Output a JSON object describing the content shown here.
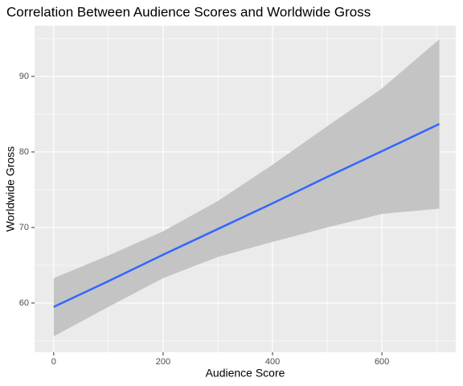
{
  "chart_data": {
    "type": "smooth",
    "title": "Correlation Between Audience Scores and Worldwide Gross",
    "xlabel": "Audience Score",
    "ylabel": "Worldwide Gross",
    "x": [
      0,
      100,
      200,
      300,
      400,
      500,
      600,
      705
    ],
    "series": [
      {
        "color": "#3366ff",
        "band_color": "#c4c4c4",
        "values": [
          59.5,
          62.9,
          66.4,
          69.8,
          73.2,
          76.7,
          80.1,
          83.7
        ],
        "lower": [
          55.6,
          59.5,
          63.3,
          66.1,
          68.1,
          70.0,
          71.8,
          72.5
        ],
        "upper": [
          63.3,
          66.3,
          69.5,
          73.5,
          78.3,
          83.4,
          88.4,
          94.9
        ]
      }
    ],
    "xlim": [
      -35,
      735
    ],
    "ylim": [
      53.5,
      96.7
    ],
    "xticks": [
      0,
      200,
      400,
      600
    ],
    "yticks": [
      60,
      70,
      80,
      90
    ],
    "grid": true
  }
}
